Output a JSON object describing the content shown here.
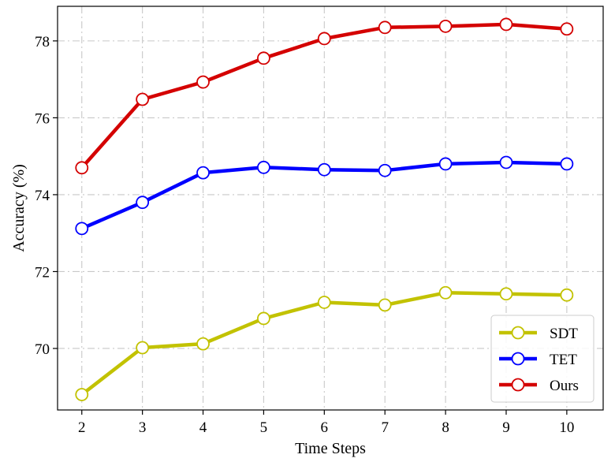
{
  "chart_data": {
    "type": "line",
    "xlabel": "Time Steps",
    "ylabel": "Accuracy (%)",
    "x": [
      2,
      3,
      4,
      5,
      6,
      7,
      8,
      9,
      10
    ],
    "xticks": [
      "2",
      "3",
      "4",
      "5",
      "6",
      "7",
      "8",
      "9",
      "10"
    ],
    "yticks": [
      "70",
      "72",
      "74",
      "76",
      "78"
    ],
    "xlim": [
      1.6,
      10.6
    ],
    "ylim": [
      68.4,
      78.9
    ],
    "grid": true,
    "grid_style": "dash-dot",
    "legend_position": "bottom-right",
    "series": [
      {
        "name": "SDT",
        "color": "#c2c200",
        "values": [
          68.8,
          70.02,
          70.12,
          70.78,
          71.2,
          71.13,
          71.45,
          71.42,
          71.39
        ]
      },
      {
        "name": "TET",
        "color": "#0000ff",
        "values": [
          73.12,
          73.8,
          74.57,
          74.71,
          74.65,
          74.63,
          74.8,
          74.84,
          74.8
        ]
      },
      {
        "name": "Ours",
        "color": "#d40000",
        "values": [
          74.7,
          76.48,
          76.93,
          77.55,
          78.06,
          78.35,
          78.38,
          78.43,
          78.31
        ]
      }
    ]
  }
}
